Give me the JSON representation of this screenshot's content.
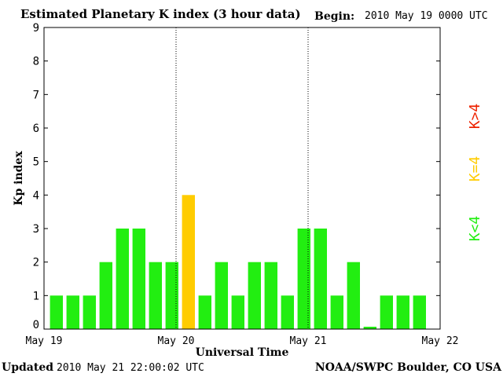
{
  "header": {
    "title": "Estimated Planetary K index (3 hour data)",
    "begin_label": "Begin:",
    "begin_value": "2010 May 19 0000 UTC"
  },
  "footer": {
    "updated_label": "Updated",
    "updated_value": "2010 May 21 22:00:02 UTC",
    "source": "NOAA/SWPC Boulder, CO USA"
  },
  "legend": {
    "high": "K>4",
    "equal": "K=4",
    "low": "K<4"
  },
  "colors": {
    "low": "#22ee11",
    "equal": "#ffcc00",
    "high": "#ee2200",
    "frame": "#000000",
    "grid": "#000000"
  },
  "chart_data": {
    "type": "bar",
    "title": "Estimated Planetary K index (3 hour data)",
    "xlabel": "Universal Time",
    "ylabel": "Kp index",
    "ylim": [
      0,
      9
    ],
    "yticks": [
      "0",
      "1",
      "2",
      "3",
      "4",
      "5",
      "6",
      "7",
      "8",
      "9"
    ],
    "xticks": [
      "May 19",
      "May 20",
      "May 21",
      "May 22"
    ],
    "interval_hours": 3,
    "values": [
      1,
      1,
      1,
      2,
      3,
      3,
      2,
      2,
      4,
      1,
      2,
      1,
      2,
      2,
      1,
      3,
      3,
      1,
      2,
      0.07,
      1,
      1,
      1
    ],
    "day_separators": [
      "May 20",
      "May 21"
    ],
    "grid": false,
    "legend_position": "right"
  }
}
